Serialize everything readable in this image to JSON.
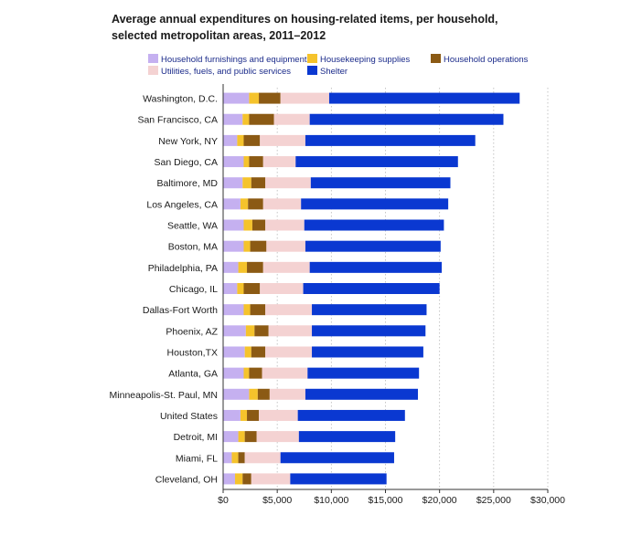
{
  "chart_data": {
    "type": "bar",
    "orientation": "horizontal",
    "stacked": true,
    "title": "Average annual expenditures on housing-related items, per household, selected metropolitan areas, 2011–2012",
    "title_lines": [
      "Average annual expenditures on housing-related items, per household,",
      "selected metropolitan areas, 2011–2012"
    ],
    "xlabel": "",
    "ylabel": "",
    "xlim": [
      0,
      30000
    ],
    "x_ticks": [
      0,
      5000,
      10000,
      15000,
      20000,
      25000,
      30000
    ],
    "x_tick_labels": [
      "$0",
      "$5,000",
      "$10,000",
      "$15,000",
      "$20,000",
      "$25,000",
      "$30,000"
    ],
    "grid": "vertical dotted",
    "legend_position": "top",
    "categories": [
      "Washington, D.C.",
      "San Francisco, CA",
      "New York, NY",
      "San Diego, CA",
      "Baltimore, MD",
      "Los Angeles, CA",
      "Seattle, WA",
      "Boston, MA",
      "Philadelphia, PA",
      "Chicago, IL",
      "Dallas-Fort Worth",
      "Phoenix, AZ",
      "Houston,TX",
      "Atlanta, GA",
      "Minneapolis-St. Paul, MN",
      "United States",
      "Detroit, MI",
      "Miami, FL",
      "Cleveland, OH"
    ],
    "series": [
      {
        "name": "Household furnishings and equipment",
        "color": "#c5b0f0",
        "values": [
          2400,
          1800,
          1300,
          1900,
          1800,
          1600,
          1900,
          1900,
          1400,
          1300,
          1900,
          2100,
          2000,
          1900,
          2400,
          1600,
          1400,
          800,
          1100
        ]
      },
      {
        "name": "Housekeeping supplies",
        "color": "#f5c32c",
        "values": [
          900,
          600,
          600,
          500,
          800,
          700,
          800,
          600,
          800,
          600,
          600,
          800,
          600,
          500,
          800,
          600,
          600,
          600,
          700
        ]
      },
      {
        "name": "Household operations",
        "color": "#8b5a14",
        "values": [
          2000,
          2300,
          1500,
          1300,
          1300,
          1400,
          1200,
          1500,
          1500,
          1500,
          1400,
          1300,
          1300,
          1200,
          1100,
          1100,
          1100,
          600,
          800
        ]
      },
      {
        "name": "Utilities, fuels, and public services",
        "color": "#f4d2d2",
        "values": [
          4500,
          3300,
          4200,
          3000,
          4200,
          3500,
          3600,
          3600,
          4300,
          4000,
          4300,
          4000,
          4300,
          4200,
          3300,
          3600,
          3900,
          3300,
          3600
        ]
      },
      {
        "name": "Shelter",
        "color": "#0a38d1",
        "values": [
          17600,
          17900,
          15700,
          15000,
          12900,
          13600,
          12900,
          12500,
          12200,
          12600,
          10600,
          10500,
          10300,
          10300,
          10400,
          9900,
          8900,
          10500,
          8900
        ]
      }
    ]
  }
}
